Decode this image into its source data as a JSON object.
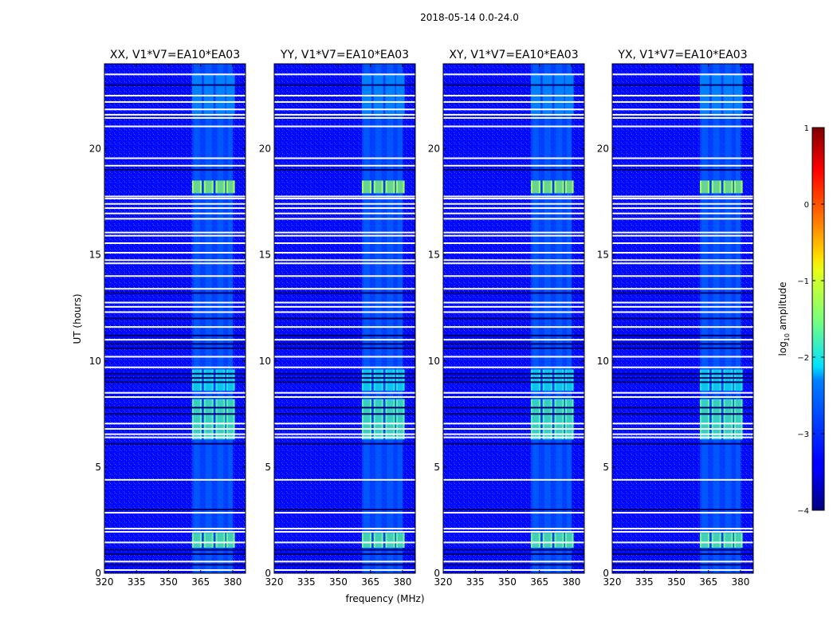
{
  "chart_data": {
    "type": "heatmap",
    "suptitle": "2018-05-14 0.0-24.0",
    "xlabel": "frequency (MHz)",
    "ylabel": "UT (hours)",
    "xlim": [
      320,
      386
    ],
    "ylim": [
      0,
      24
    ],
    "xticks": [
      320,
      335,
      350,
      365,
      380
    ],
    "yticks": [
      0,
      5,
      10,
      15,
      20
    ],
    "panels": [
      {
        "title": "XX, V1*V7=EA10*EA03"
      },
      {
        "title": "YY, V1*V7=EA10*EA03"
      },
      {
        "title": "XY, V1*V7=EA10*EA03"
      },
      {
        "title": "YX, V1*V7=EA10*EA03"
      }
    ],
    "rfi_band_mhz": [
      361,
      380
    ],
    "rfi_channels_mhz": [
      [
        361,
        365.5
      ],
      [
        366.5,
        371
      ],
      [
        372,
        376.5
      ],
      [
        377,
        381
      ]
    ],
    "strong_intervals_ut": [
      {
        "start": 1.2,
        "end": 1.9,
        "level": -1.6
      },
      {
        "start": 6.3,
        "end": 8.2,
        "level": -1.7
      },
      {
        "start": 8.6,
        "end": 9.6,
        "level": -2.0
      },
      {
        "start": 17.9,
        "end": 18.5,
        "level": -1.3
      },
      {
        "start": 21.6,
        "end": 23.5,
        "level": -2.3
      }
    ],
    "flagged_ut": [
      0.15,
      0.55,
      1.45,
      1.95,
      2.1,
      2.85,
      4.4,
      6.4,
      6.55,
      6.8,
      7.05,
      8.3,
      8.5,
      9.7,
      10.2,
      11.0,
      11.6,
      12.3,
      12.55,
      12.75,
      13.4,
      14.0,
      14.6,
      14.75,
      15.1,
      15.55,
      15.9,
      16.05,
      16.7,
      16.95,
      17.2,
      17.4,
      17.65,
      17.75,
      19.2,
      19.55,
      21.05,
      21.45,
      21.6,
      21.85,
      22.2,
      22.5,
      23.5
    ],
    "dark_ut": [
      0.4,
      0.9,
      1.1,
      3.0,
      6.1,
      7.5,
      7.8,
      9.0,
      9.2,
      9.4,
      10.6,
      10.8,
      11.2,
      12.0,
      13.2,
      19.0,
      23.0
    ],
    "colorbar": {
      "label": "log10 amplitude",
      "range": [
        -4,
        1
      ],
      "ticks": [
        -4,
        -3,
        -2,
        -1,
        0,
        1
      ],
      "tick_labels": [
        "−4",
        "−3",
        "−2",
        "−1",
        "0",
        "1"
      ]
    }
  }
}
